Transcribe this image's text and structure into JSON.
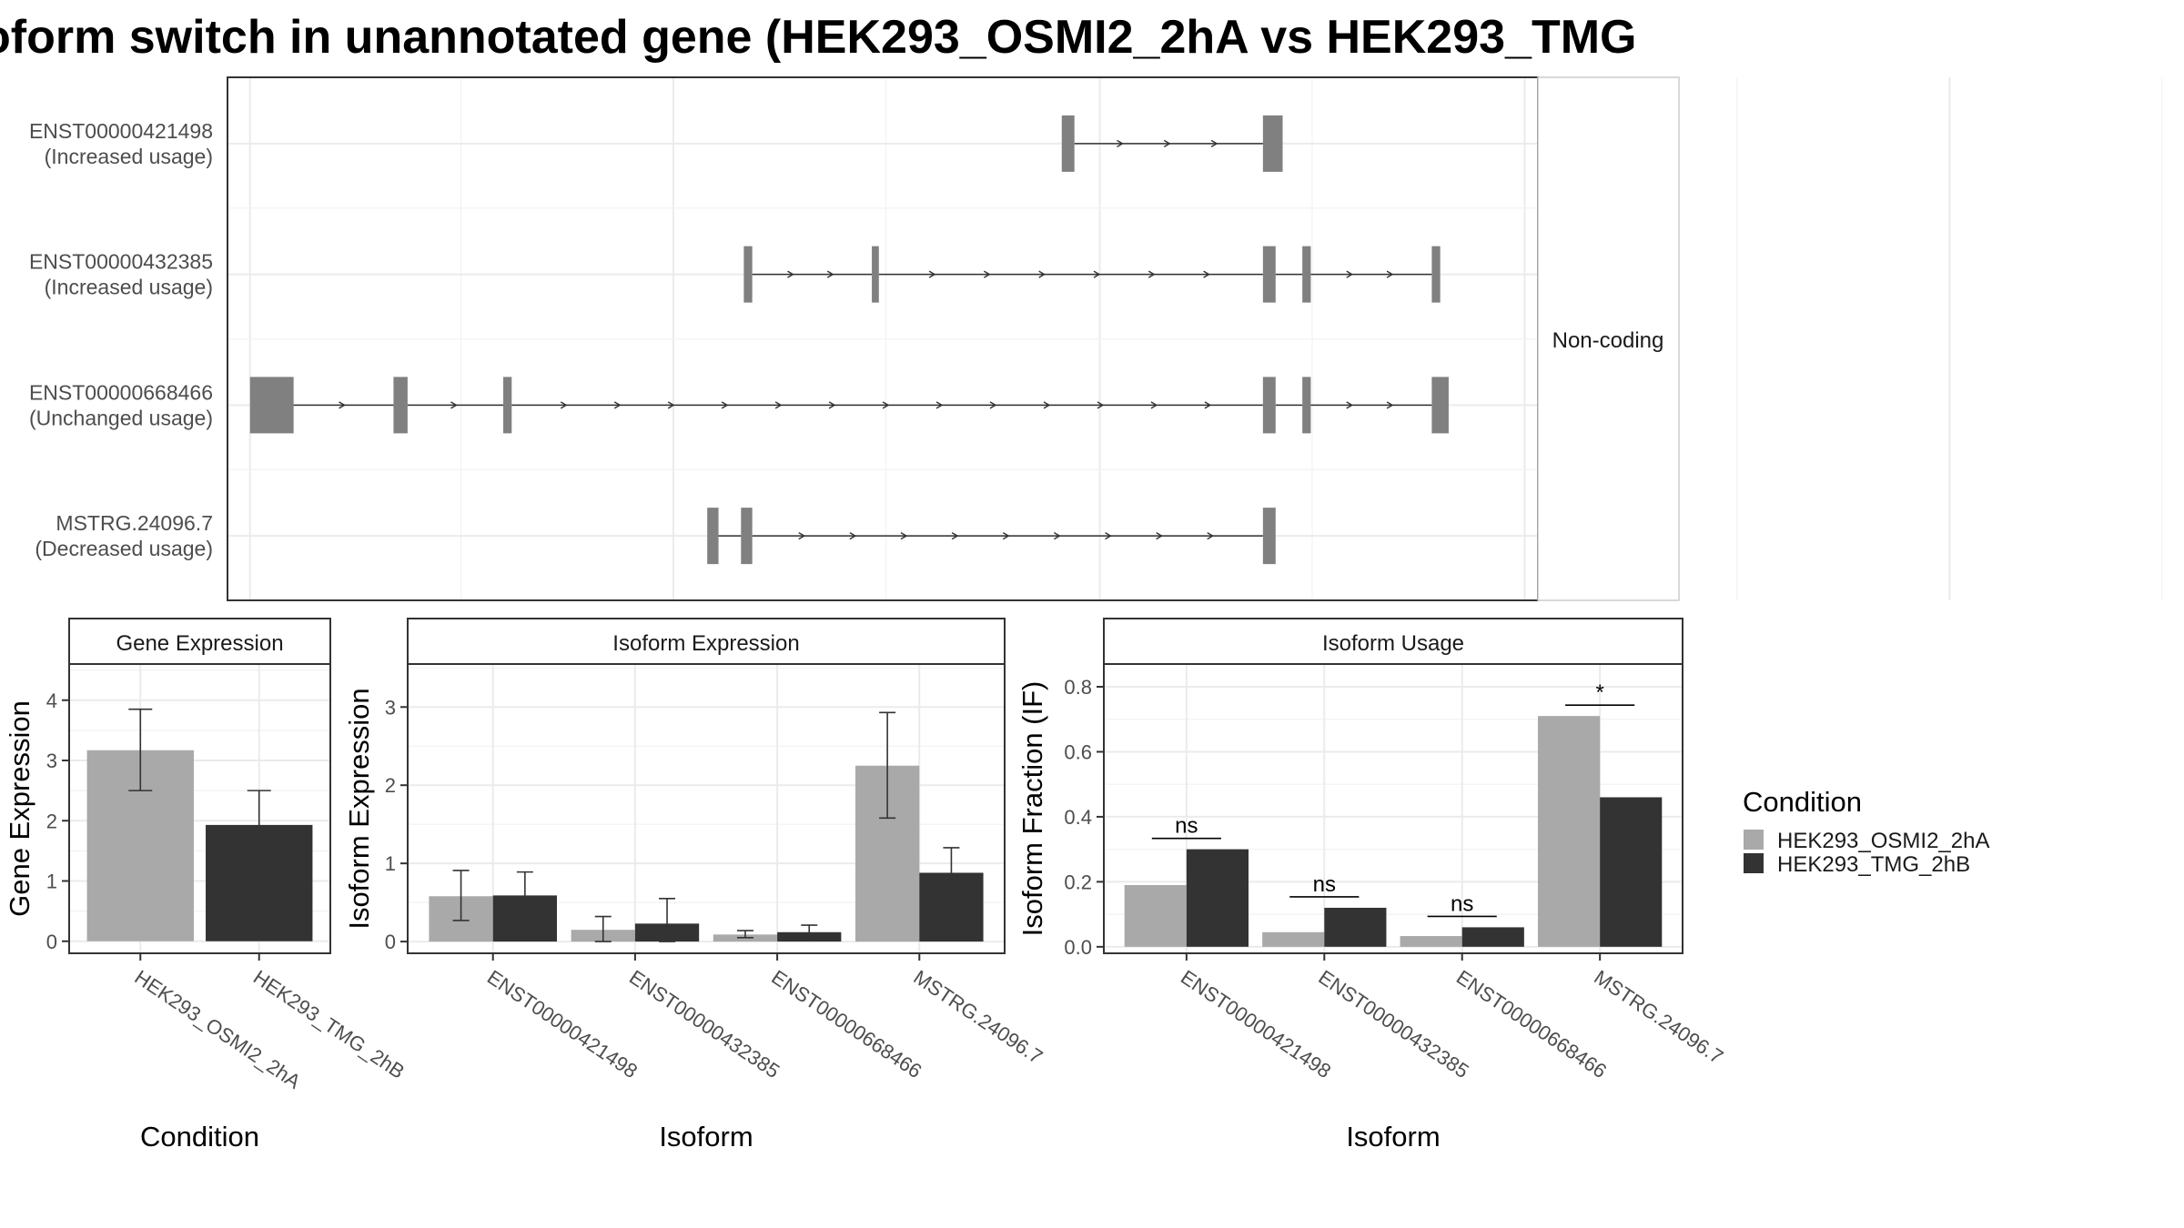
{
  "title": "oform switch in unannotated gene (HEK293_OSMI2_2hA vs HEK293_TMG",
  "colors": {
    "condition_a": "#a9a9a9",
    "condition_b": "#333333",
    "exon": "#808080",
    "intron": "#333333"
  },
  "legend": {
    "title": "Condition",
    "items": [
      {
        "label": "HEK293_OSMI2_2hA",
        "color": "#a9a9a9"
      },
      {
        "label": "HEK293_TMG_2hB",
        "color": "#333333"
      }
    ]
  },
  "transcript_panel": {
    "strip_label": "Non-coding",
    "isoforms": [
      {
        "name": "ENST00000421498",
        "usage": "(Increased usage)",
        "exons": [
          [
            780,
            789
          ],
          [
            923,
            937
          ]
        ]
      },
      {
        "name": "ENST00000432385",
        "usage": "(Increased usage)",
        "exons": [
          [
            554,
            560
          ],
          [
            645,
            650
          ],
          [
            923,
            932
          ],
          [
            951,
            957
          ],
          [
            1043,
            1049
          ]
        ]
      },
      {
        "name": "ENST00000668466",
        "usage": "(Unchanged usage)",
        "exons": [
          [
            203,
            234
          ],
          [
            305,
            315
          ],
          [
            383,
            389
          ],
          [
            923,
            932
          ],
          [
            951,
            957
          ],
          [
            1043,
            1055
          ]
        ]
      },
      {
        "name": "MSTRG.24096.7",
        "usage": "(Decreased usage)",
        "exons": [
          [
            528,
            536
          ],
          [
            552,
            560
          ],
          [
            923,
            932
          ]
        ]
      }
    ]
  },
  "chart_data": [
    {
      "type": "bar",
      "title": "Gene Expression",
      "xlabel": "Condition",
      "ylabel": "Gene Expression",
      "categories": [
        "HEK293_OSMI2_2hA",
        "HEK293_TMG_2hB"
      ],
      "series": [
        {
          "name": "HEK293_OSMI2_2hA",
          "values": [
            3.17,
            null
          ],
          "errors": [
            [
              2.5,
              3.85
            ],
            null
          ]
        },
        {
          "name": "HEK293_TMG_2hB",
          "values": [
            null,
            1.93
          ],
          "errors": [
            null,
            [
              1.38,
              2.5
            ]
          ]
        }
      ],
      "yticks": [
        0,
        1,
        2,
        3,
        4
      ],
      "ylim": [
        -0.2,
        4.6
      ],
      "grid": true
    },
    {
      "type": "bar",
      "title": "Isoform Expression",
      "xlabel": "Isoform",
      "ylabel": "Isoform Expression",
      "categories": [
        "ENST00000421498",
        "ENST00000432385",
        "ENST00000668466",
        "MSTRG.24096.7"
      ],
      "series": [
        {
          "name": "HEK293_OSMI2_2hA",
          "values": [
            0.58,
            0.15,
            0.09,
            2.25
          ],
          "errors": [
            [
              0.27,
              0.91
            ],
            [
              0.0,
              0.32
            ],
            [
              0.05,
              0.14
            ],
            [
              1.58,
              2.93
            ]
          ]
        },
        {
          "name": "HEK293_TMG_2hB",
          "values": [
            0.59,
            0.23,
            0.12,
            0.88
          ],
          "errors": [
            [
              0.29,
              0.89
            ],
            [
              0.0,
              0.55
            ],
            [
              0.05,
              0.21
            ],
            [
              0.58,
              1.2
            ]
          ]
        }
      ],
      "yticks": [
        0,
        1,
        2,
        3
      ],
      "ylim": [
        -0.15,
        3.55
      ],
      "grid": true
    },
    {
      "type": "bar",
      "title": "Isoform Usage",
      "xlabel": "Isoform",
      "ylabel": "Isoform Fraction (IF)",
      "categories": [
        "ENST00000421498",
        "ENST00000432385",
        "ENST00000668466",
        "MSTRG.24096.7"
      ],
      "series": [
        {
          "name": "HEK293_OSMI2_2hA",
          "values": [
            0.19,
            0.045,
            0.033,
            0.71
          ]
        },
        {
          "name": "HEK293_TMG_2hB",
          "values": [
            0.3,
            0.12,
            0.06,
            0.46
          ]
        }
      ],
      "significance": [
        "ns",
        "ns",
        "ns",
        "*"
      ],
      "yticks": [
        0.0,
        0.2,
        0.4,
        0.6,
        0.8
      ],
      "ytick_labels": [
        "0.0",
        "0.2",
        "0.4",
        "0.6",
        "0.8"
      ],
      "ylim": [
        -0.02,
        0.87
      ],
      "grid": true
    }
  ]
}
